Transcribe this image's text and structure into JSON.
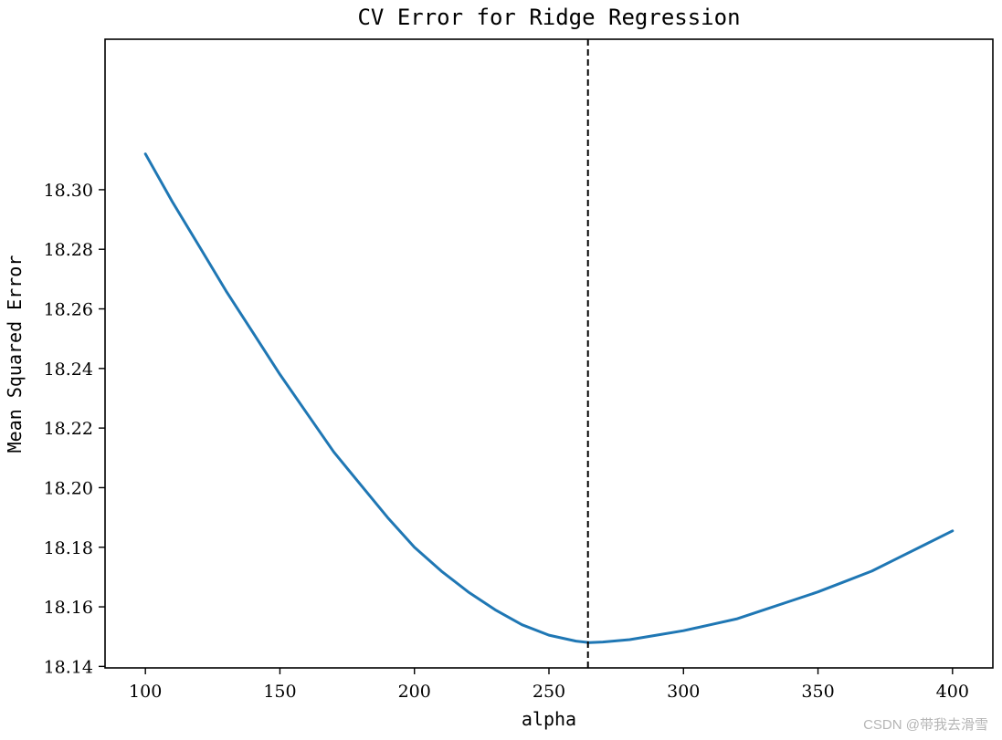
{
  "chart_data": {
    "type": "line",
    "title": "CV Error for Ridge Regression",
    "xlabel": "alpha",
    "ylabel": "Mean Squared Error",
    "xlim": [
      85,
      415
    ],
    "ylim": [
      18.1395,
      18.3505
    ],
    "x_ticks": [
      100,
      150,
      200,
      250,
      300,
      350,
      400
    ],
    "x_tick_labels": [
      "100",
      "150",
      "200",
      "250",
      "300",
      "350",
      "400"
    ],
    "y_ticks": [
      18.14,
      18.16,
      18.18,
      18.2,
      18.22,
      18.24,
      18.26,
      18.28,
      18.3
    ],
    "y_tick_labels": [
      "18.14",
      "18.16",
      "18.18",
      "18.20",
      "18.22",
      "18.24",
      "18.26",
      "18.28",
      "18.30"
    ],
    "grid": false,
    "series": [
      {
        "color": "#1f77b4",
        "x": [
          100,
          110,
          120,
          130,
          140,
          150,
          160,
          170,
          180,
          190,
          200,
          210,
          220,
          230,
          240,
          250,
          260,
          265,
          270,
          280,
          290,
          300,
          310,
          320,
          330,
          340,
          350,
          360,
          370,
          380,
          390,
          400
        ],
        "y": [
          18.312,
          18.296,
          18.281,
          18.266,
          18.252,
          18.238,
          18.225,
          18.212,
          18.201,
          18.19,
          18.18,
          18.172,
          18.165,
          18.159,
          18.154,
          18.1505,
          18.1485,
          18.148,
          18.1482,
          18.149,
          18.1505,
          18.152,
          18.154,
          18.156,
          18.159,
          18.162,
          18.165,
          18.1685,
          18.172,
          18.1765,
          18.181,
          18.1855
        ]
      }
    ],
    "vline": {
      "x": 264.5,
      "style": "dashed",
      "color": "#000000"
    }
  },
  "watermark": "CSDN @带我去滑雪"
}
